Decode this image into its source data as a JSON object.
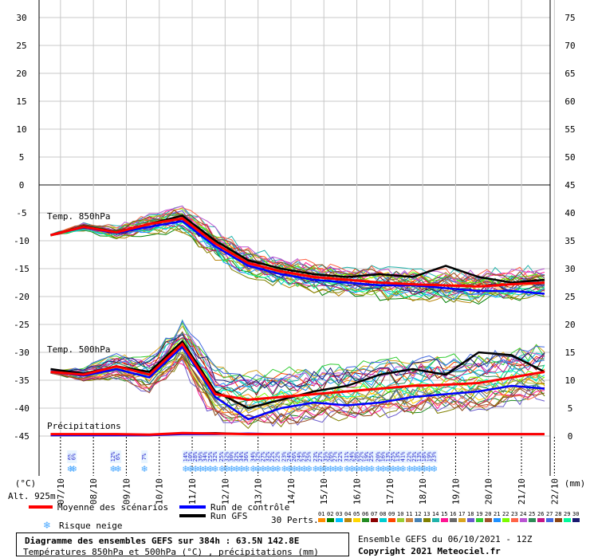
{
  "chart_data": {
    "type": "line",
    "x_dates": [
      "07/10",
      "08/10",
      "09/10",
      "10/10",
      "11/10",
      "12/10",
      "13/10",
      "14/10",
      "15/10",
      "16/10",
      "17/10",
      "18/10",
      "19/10",
      "20/10",
      "21/10",
      "22/10"
    ],
    "left_axis": {
      "unit_label": "(°C)",
      "ticks": [
        30,
        25,
        20,
        15,
        10,
        5,
        0,
        -5,
        -10,
        -15,
        -20,
        -25,
        -30,
        -35,
        -40,
        -45
      ]
    },
    "right_axis": {
      "unit_label": "(mm)",
      "ticks": [
        75,
        70,
        65,
        60,
        55,
        50,
        45,
        40,
        35,
        30,
        25,
        20,
        15,
        10,
        5,
        0
      ]
    },
    "altitude": "Alt. 925m",
    "labels": {
      "t850": "Temp. 850hPa",
      "t500": "Temp. 500hPa",
      "precip": "Précipitations"
    },
    "series": [
      {
        "name": "Moyenne des scénarios",
        "color": "#ff0000",
        "t850": [
          -9.0,
          -7.5,
          -8.5,
          -7.0,
          -6.0,
          -10.5,
          -14.0,
          -15.5,
          -16.5,
          -17.0,
          -17.5,
          -17.8,
          -18.0,
          -18.2,
          -17.8,
          -17.5
        ],
        "t500": [
          -33.5,
          -34.0,
          -32.5,
          -34.0,
          -28.5,
          -37.5,
          -38.5,
          -38.0,
          -37.5,
          -37.0,
          -36.5,
          -36.0,
          -35.8,
          -35.5,
          -34.5,
          -33.5
        ],
        "precip": [
          0.2,
          0.2,
          0.2,
          0.1,
          0.4,
          0.3,
          0.2,
          0.2,
          0.2,
          0.2,
          0.2,
          0.2,
          0.2,
          0.2,
          0.2,
          0.2
        ]
      },
      {
        "name": "Run de contrôle",
        "color": "#0000ff",
        "t850": [
          -9.0,
          -7.6,
          -8.6,
          -7.5,
          -6.5,
          -11.0,
          -14.5,
          -16.0,
          -17.0,
          -17.5,
          -18.0,
          -18.0,
          -18.5,
          -19.0,
          -19.0,
          -19.5
        ],
        "t500": [
          -33.5,
          -34.2,
          -33.0,
          -34.5,
          -29.0,
          -38.0,
          -42.0,
          -40.0,
          -39.0,
          -39.5,
          -39.0,
          -38.0,
          -37.5,
          -37.0,
          -36.0,
          -36.5
        ],
        "precip": [
          0,
          0,
          0,
          0,
          0.2,
          0.2,
          0.3,
          0.2,
          0.2,
          0.2,
          0.2,
          0.2,
          0.2,
          0.2,
          0.2,
          0.2
        ]
      },
      {
        "name": "Run GFS",
        "color": "#000000",
        "t850": [
          -9.0,
          -7.4,
          -8.4,
          -7.0,
          -5.5,
          -10.0,
          -13.5,
          -15.0,
          -16.0,
          -16.5,
          -16.0,
          -16.5,
          -14.5,
          -16.5,
          -17.5,
          -17.0
        ],
        "t500": [
          -33.0,
          -33.8,
          -32.5,
          -33.5,
          -28.0,
          -37.0,
          -40.0,
          -38.5,
          -37.0,
          -36.0,
          -34.0,
          -33.0,
          -34.0,
          -30.0,
          -30.5,
          -33.5
        ],
        "precip": [
          0,
          0,
          0,
          0,
          0.3,
          0.4,
          0.2,
          0.2,
          0.2,
          0.2,
          0.2,
          0.2,
          0.2,
          0.2,
          0.2,
          0.2
        ]
      }
    ],
    "snow_risk": [
      {
        "x": 0.6,
        "pct": "6%"
      },
      {
        "x": 0.7,
        "pct": "6%"
      },
      {
        "x": 1.9,
        "pct": "12%"
      },
      {
        "x": 2.05,
        "pct": "6%"
      },
      {
        "x": 2.85,
        "pct": "7%"
      },
      {
        "x": 4.1,
        "pct": "14%"
      },
      {
        "x": 4.25,
        "pct": "10%"
      },
      {
        "x": 4.4,
        "pct": "28%"
      },
      {
        "x": 4.55,
        "pct": "36%"
      },
      {
        "x": 4.7,
        "pct": "34%"
      },
      {
        "x": 4.85,
        "pct": "25%"
      },
      {
        "x": 5.0,
        "pct": "32%"
      },
      {
        "x": 5.2,
        "pct": "25%"
      },
      {
        "x": 5.35,
        "pct": "32%"
      },
      {
        "x": 5.5,
        "pct": "30%"
      },
      {
        "x": 5.65,
        "pct": "32%"
      },
      {
        "x": 5.8,
        "pct": "34%"
      },
      {
        "x": 5.95,
        "pct": "36%"
      },
      {
        "x": 6.15,
        "pct": "34%"
      },
      {
        "x": 6.3,
        "pct": "32%"
      },
      {
        "x": 6.45,
        "pct": "27%"
      },
      {
        "x": 6.6,
        "pct": "32%"
      },
      {
        "x": 6.75,
        "pct": "22%"
      },
      {
        "x": 6.9,
        "pct": "22%"
      },
      {
        "x": 7.1,
        "pct": "23%"
      },
      {
        "x": 7.25,
        "pct": "24%"
      },
      {
        "x": 7.4,
        "pct": "26%"
      },
      {
        "x": 7.55,
        "pct": "24%"
      },
      {
        "x": 7.7,
        "pct": "23%"
      },
      {
        "x": 7.85,
        "pct": "25%"
      },
      {
        "x": 8.05,
        "pct": "23%"
      },
      {
        "x": 8.2,
        "pct": "27%"
      },
      {
        "x": 8.35,
        "pct": "35%"
      },
      {
        "x": 8.5,
        "pct": "26%"
      },
      {
        "x": 8.65,
        "pct": "27%"
      },
      {
        "x": 8.8,
        "pct": "22%"
      },
      {
        "x": 9.0,
        "pct": "31%"
      },
      {
        "x": 9.15,
        "pct": "24%"
      },
      {
        "x": 9.3,
        "pct": "28%"
      },
      {
        "x": 9.45,
        "pct": "22%"
      },
      {
        "x": 9.6,
        "pct": "19%"
      },
      {
        "x": 9.75,
        "pct": "25%"
      },
      {
        "x": 9.95,
        "pct": "20%"
      },
      {
        "x": 10.1,
        "pct": "16%"
      },
      {
        "x": 10.25,
        "pct": "13%"
      },
      {
        "x": 10.4,
        "pct": "25%"
      },
      {
        "x": 10.55,
        "pct": "13%"
      },
      {
        "x": 10.7,
        "pct": "41%"
      },
      {
        "x": 10.9,
        "pct": "22%"
      },
      {
        "x": 11.05,
        "pct": "23%"
      },
      {
        "x": 11.2,
        "pct": "13%"
      },
      {
        "x": 11.35,
        "pct": "18%"
      },
      {
        "x": 11.5,
        "pct": "19%"
      },
      {
        "x": 11.65,
        "pct": "23%"
      }
    ]
  },
  "legend": {
    "mean": "Moyenne des scénarios",
    "control": "Run de contrôle",
    "gfs": "Run GFS",
    "perts_label": "30 Perts.",
    "snow": "Risque neige",
    "members": [
      "01",
      "02",
      "03",
      "04",
      "05",
      "06",
      "07",
      "08",
      "09",
      "10",
      "11",
      "12",
      "13",
      "14",
      "15",
      "16",
      "17",
      "18",
      "19",
      "20",
      "21",
      "22",
      "23",
      "24",
      "25",
      "26",
      "27",
      "28",
      "29",
      "30"
    ],
    "member_colors": [
      "#ff8c00",
      "#008000",
      "#00bfff",
      "#b8860b",
      "#ffd700",
      "#228b22",
      "#8b0000",
      "#00ced1",
      "#ff4500",
      "#9acd32",
      "#cd853f",
      "#4682b4",
      "#808000",
      "#20b2aa",
      "#ff1493",
      "#696969",
      "#daa520",
      "#6a5acd",
      "#32cd32",
      "#a0522d",
      "#1e90ff",
      "#7cfc00",
      "#ff6347",
      "#ba55d3",
      "#2e8b57",
      "#c71585",
      "#4169e1",
      "#8b4513",
      "#00fa9a",
      "#191970"
    ]
  },
  "footer": {
    "title": "Diagramme des ensembles GEFS sur 384h : 63.5N 142.8E",
    "subtitle": "Températures 850hPa et 500hPa (°C) , précipitations (mm)",
    "run": "Ensemble GEFS du 06/10/2021 - 12Z",
    "copyright": "Copyright 2021 Meteociel.fr"
  }
}
